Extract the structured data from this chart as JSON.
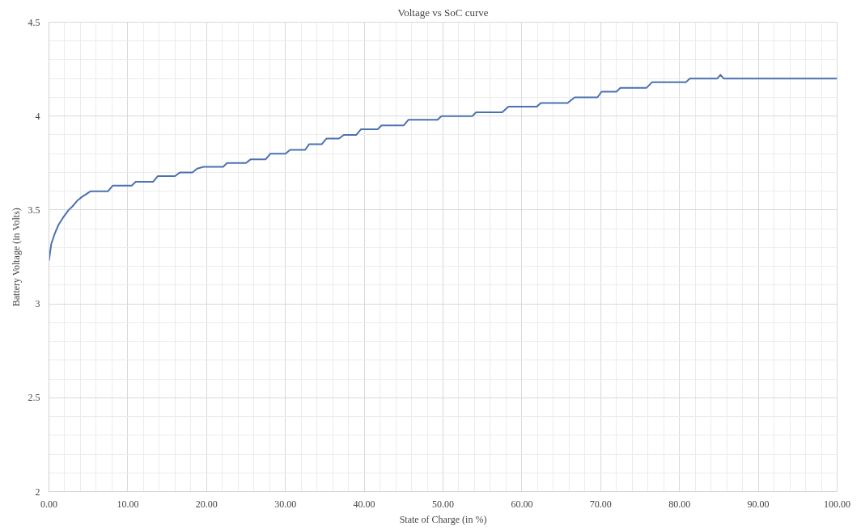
{
  "chart_data": {
    "type": "line",
    "title": "Voltage vs SoC curve",
    "xlabel": "State of Charge (in %)",
    "ylabel": "Battery Voltage (in Volts)",
    "xlim": [
      0,
      100
    ],
    "ylim": [
      2,
      4.5
    ],
    "xticks": [
      {
        "value": 0,
        "label": "0.00"
      },
      {
        "value": 10,
        "label": "10.00"
      },
      {
        "value": 20,
        "label": "20.00"
      },
      {
        "value": 30,
        "label": "30.00"
      },
      {
        "value": 40,
        "label": "40.00"
      },
      {
        "value": 50,
        "label": "50.00"
      },
      {
        "value": 60,
        "label": "60.00"
      },
      {
        "value": 70,
        "label": "70.00"
      },
      {
        "value": 80,
        "label": "80.00"
      },
      {
        "value": 90,
        "label": "90.00"
      },
      {
        "value": 100,
        "label": "100.00"
      }
    ],
    "yticks": [
      2,
      2.5,
      3,
      3.5,
      4,
      4.5
    ],
    "grid": true,
    "marker": "none",
    "line_style": "solid",
    "series": [
      {
        "color": "#4a72b0",
        "x": [
          0,
          0.3,
          0.7,
          1.2,
          1.8,
          2.5,
          3.0,
          3.6,
          4.2,
          5.3,
          7.5,
          8.1,
          10.5,
          11.0,
          13.2,
          13.8,
          16.0,
          16.6,
          18.2,
          18.8,
          19.6,
          22.1,
          22.6,
          25.0,
          25.6,
          27.5,
          28.1,
          30.0,
          30.6,
          32.5,
          33.0,
          34.6,
          35.2,
          36.8,
          37.4,
          39.0,
          39.6,
          41.7,
          42.2,
          45.0,
          45.6,
          49.3,
          49.8,
          53.7,
          54.2,
          57.5,
          58.3,
          61.9,
          62.4,
          65.8,
          66.7,
          69.6,
          70.1,
          72.0,
          72.5,
          75.8,
          76.5,
          80.8,
          81.3,
          84.8,
          85.2,
          85.6,
          100
        ],
        "values": [
          3.23,
          3.32,
          3.37,
          3.42,
          3.46,
          3.5,
          3.52,
          3.55,
          3.57,
          3.6,
          3.6,
          3.63,
          3.63,
          3.65,
          3.65,
          3.68,
          3.68,
          3.7,
          3.7,
          3.72,
          3.73,
          3.73,
          3.75,
          3.75,
          3.77,
          3.77,
          3.8,
          3.8,
          3.82,
          3.82,
          3.85,
          3.85,
          3.88,
          3.88,
          3.9,
          3.9,
          3.93,
          3.93,
          3.95,
          3.95,
          3.98,
          3.98,
          4.0,
          4.0,
          4.02,
          4.02,
          4.05,
          4.05,
          4.07,
          4.07,
          4.1,
          4.1,
          4.13,
          4.13,
          4.15,
          4.15,
          4.18,
          4.18,
          4.2,
          4.2,
          4.22,
          4.2,
          4.2
        ]
      }
    ]
  }
}
